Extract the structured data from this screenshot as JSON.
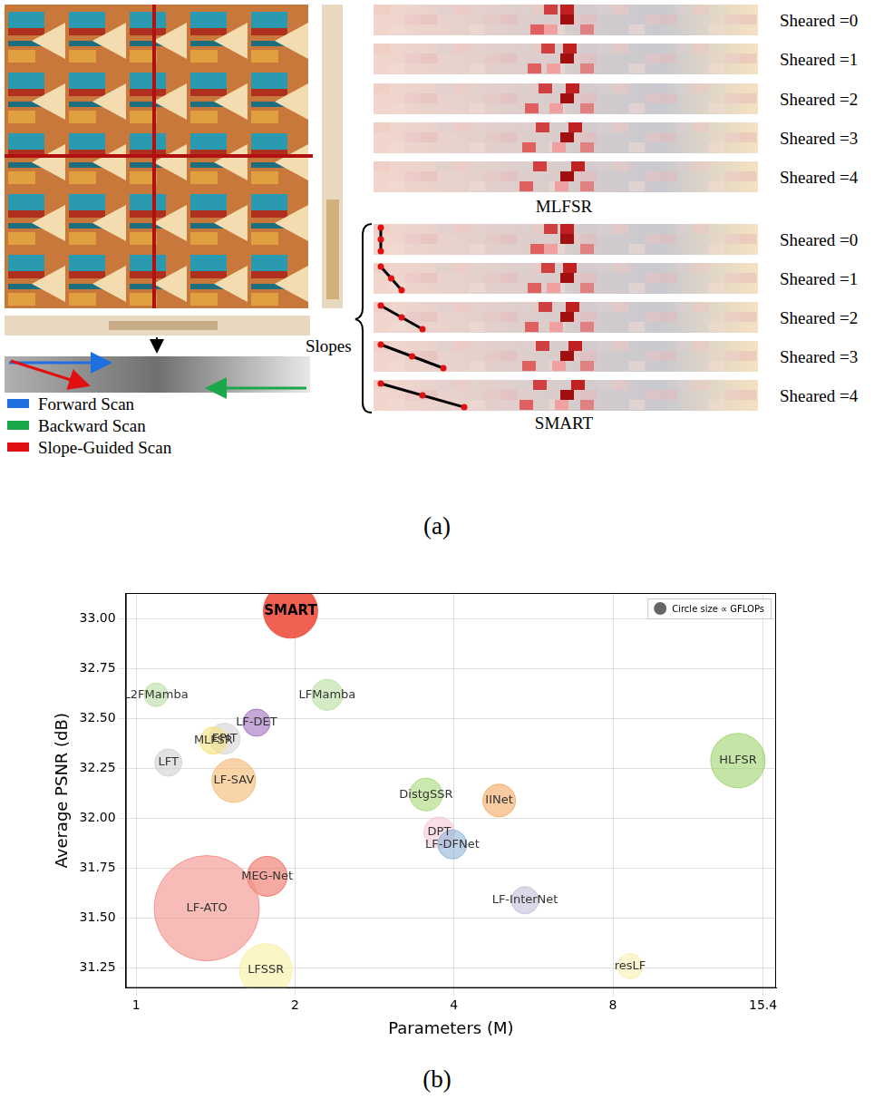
{
  "panel_a": {
    "scan_legend": [
      {
        "label": "Forward Scan",
        "color": "#1f6fe0"
      },
      {
        "label": "Backward Scan",
        "color": "#1aa84a"
      },
      {
        "label": "Slope-Guided Scan",
        "color": "#e01010"
      }
    ],
    "shear_labels": [
      "Sheared =0",
      "Sheared =1",
      "Sheared =2",
      "Sheared =3",
      "Sheared =4"
    ],
    "strip_titles": [
      "MLFSR",
      "SMART"
    ],
    "slopes_label": "Slopes"
  },
  "panel_labels": [
    "(a)",
    "(b)"
  ],
  "chart_data": {
    "type": "bubble",
    "x_label": "Parameters (M)",
    "y_label": "Average PSNR (dB)",
    "size_legend": "Circle size ∝ GFLOPs",
    "legend": "upper right",
    "log": "x",
    "grid": true,
    "xlim": [
      0.955,
      16.3
    ],
    "xticks": [
      1,
      2,
      4,
      8,
      15.4
    ],
    "ylim": [
      31.15,
      33.13
    ],
    "yticks": [
      31.25,
      {
        "value": 31.5,
        "label": "31.50"
      },
      31.75,
      {
        "value": 32,
        "label": "32.00"
      },
      32.25,
      {
        "value": 32.5,
        "label": "32.50"
      },
      32.75,
      {
        "value": 33,
        "label": "33.00"
      }
    ],
    "labels": [
      "SMART",
      "L2FMamba",
      "LFMamba",
      "LF-DET",
      "EPIT",
      "MLFSR",
      "LFT",
      "LF-SAV",
      "HLFSR",
      "DistgSSR",
      "IINet",
      "DPT",
      "LF-DFNet",
      "MEG-Net",
      "LF-ATO",
      "LF-InterNet",
      "LFSSR",
      "resLF"
    ],
    "x": [
      1.96,
      1.09,
      2.3,
      1.69,
      1.47,
      1.4,
      1.15,
      1.53,
      13.8,
      3.54,
      4.87,
      3.75,
      3.97,
      1.77,
      1.36,
      5.45,
      1.76,
      8.62
    ],
    "values": [
      33.04,
      32.62,
      32.62,
      32.48,
      32.4,
      32.39,
      32.28,
      32.19,
      32.29,
      32.12,
      32.09,
      31.93,
      31.87,
      31.71,
      31.55,
      31.59,
      31.24,
      31.26
    ],
    "sizes": [
      30,
      13,
      17,
      15,
      17,
      15,
      15,
      24,
      30,
      18,
      18,
      17,
      16,
      22,
      58,
      15,
      29,
      14
    ],
    "colors": [
      "#f0503f",
      "#b8e0a0",
      "#b8e0a0",
      "#a070c0",
      "#d4d4d4",
      "#f5e27a",
      "#cfcfcf",
      "#f5b870",
      "#9fd36a",
      "#a8d878",
      "#f5a860",
      "#f5c8d8",
      "#8fb4d8",
      "#f07060",
      "#f49088",
      "#c0c0dc",
      "#f8f0a0",
      "#f8f0b0"
    ]
  }
}
